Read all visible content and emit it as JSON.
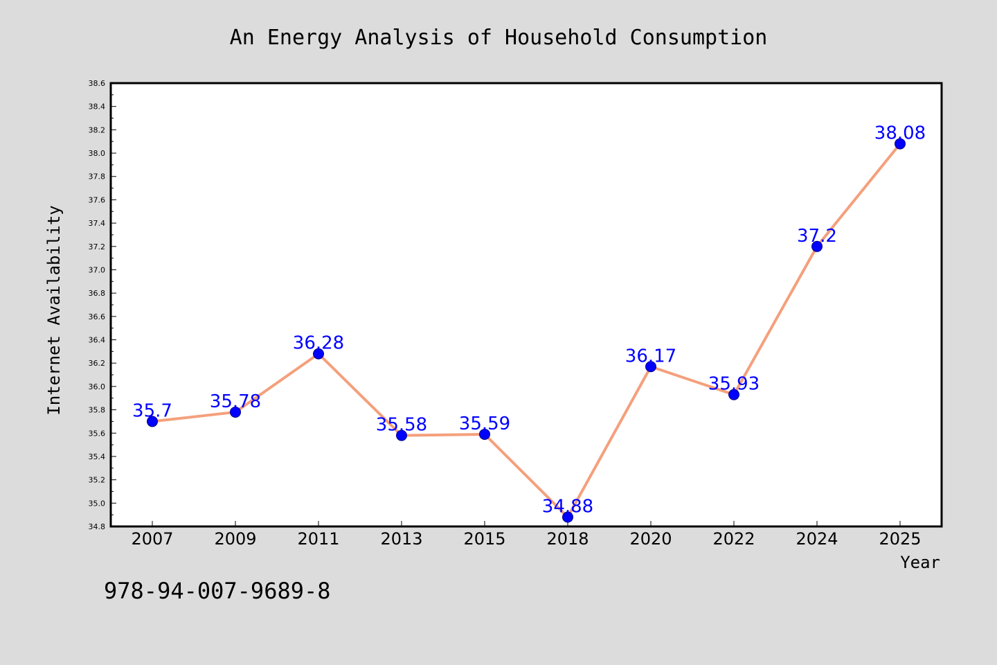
{
  "footer_code": "978-94-007-9689-8",
  "chart_data": {
    "type": "line",
    "title": "An Energy Analysis of Household Consumption",
    "xlabel": "Year",
    "ylabel": "Internet Availability",
    "categories": [
      "2007",
      "2009",
      "2011",
      "2013",
      "2015",
      "2018",
      "2020",
      "2022",
      "2024",
      "2025"
    ],
    "series": [
      {
        "values": [
          35.7,
          35.78,
          36.28,
          35.58,
          35.59,
          34.88,
          36.17,
          35.93,
          37.2,
          38.08
        ],
        "labels": [
          "35.7",
          "35.78",
          "36.28",
          "35.58",
          "35.59",
          "34.88",
          "36.17",
          "35.93",
          "37.2",
          "38.08"
        ],
        "line_color": "#f4a07c",
        "marker_color": "#0000ff"
      }
    ],
    "ylim": [
      34.8,
      38.6
    ],
    "yticks": [
      "34.8",
      "35.0",
      "35.2",
      "35.4",
      "35.6",
      "35.8",
      "36.0",
      "36.2",
      "36.4",
      "36.6",
      "36.8",
      "37.0",
      "37.2",
      "37.4",
      "37.6",
      "37.8",
      "38.0",
      "38.2",
      "38.4",
      "38.6"
    ],
    "grid": false,
    "background": "#dcdcdc",
    "plot_background": "#ffffff"
  }
}
